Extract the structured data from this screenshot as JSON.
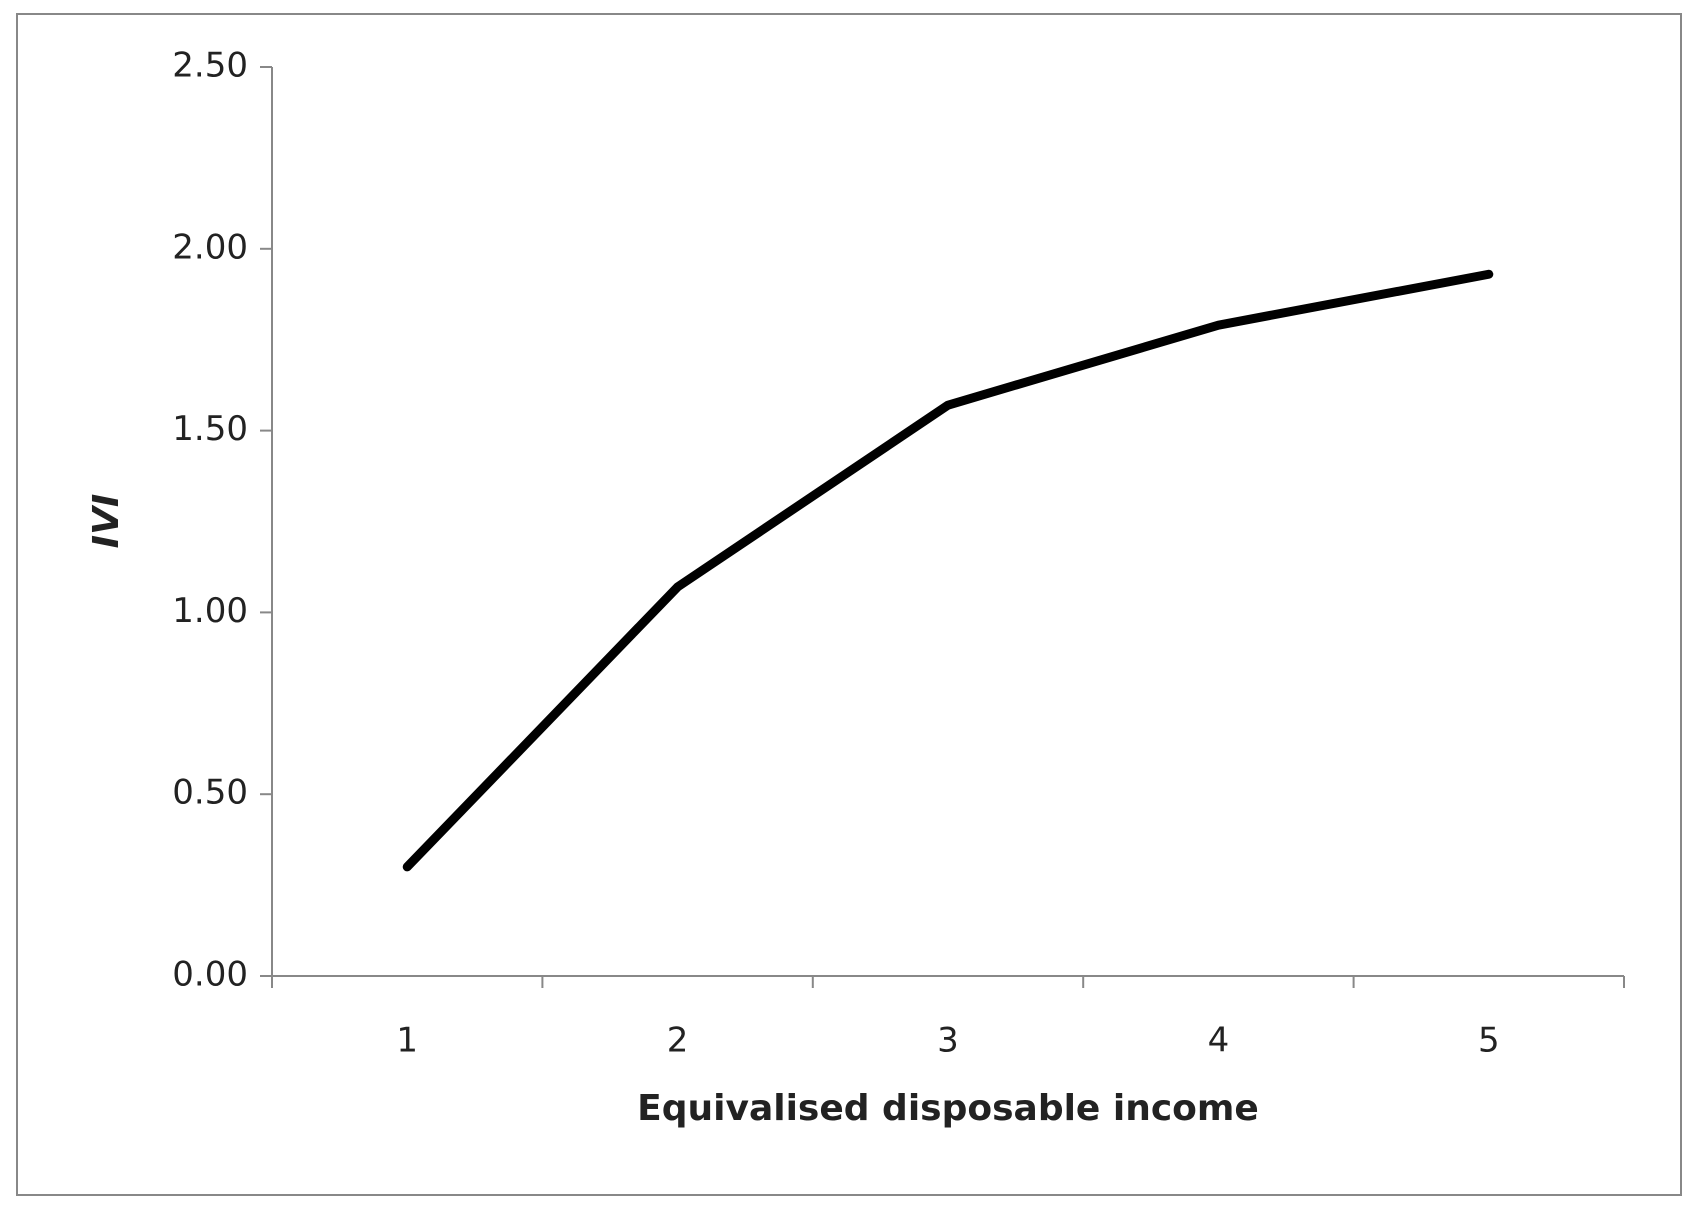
{
  "chart_data": {
    "type": "line",
    "x_label": "Equivalised disposable income",
    "y_label": "IVI",
    "categories": [
      "1",
      "2",
      "3",
      "4",
      "5"
    ],
    "series": [
      {
        "name": "IVI",
        "color": "#000000",
        "values": [
          0.3,
          1.07,
          1.57,
          1.79,
          1.93
        ]
      }
    ],
    "ylim": [
      0,
      2.5
    ],
    "yticks": [
      {
        "value": 0,
        "label": "0.00"
      },
      {
        "value": 0.5,
        "label": "0.50"
      },
      {
        "value": 1,
        "label": "1.00"
      },
      {
        "value": 1.5,
        "label": "1.50"
      },
      {
        "value": 2,
        "label": "2.00"
      },
      {
        "value": 2.5,
        "label": "2.50"
      }
    ],
    "grid": false,
    "legend": false
  }
}
